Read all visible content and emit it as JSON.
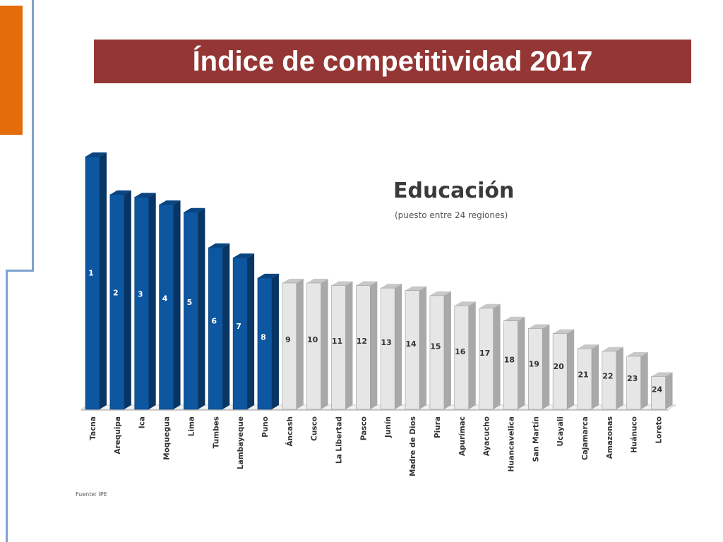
{
  "slide": {
    "title": "Índice de competitividad 2017",
    "colors": {
      "title_bar": "#943634",
      "accent": "#e46c0a",
      "rule": "#7ea1d0"
    }
  },
  "chart_data": {
    "type": "bar",
    "title": "Educación",
    "subtitle": "(puesto entre 24 regiones)",
    "source": "Fuente: IPE",
    "categories": [
      "Tacna",
      "Arequipa",
      "Ica",
      "Moquegua",
      "Lima",
      "Tumbes",
      "Lambayeque",
      "Puno",
      "Áncash",
      "Cusco",
      "La Libertad",
      "Pasco",
      "Junín",
      "Madre de Dios",
      "Piura",
      "Apurímac",
      "Ayacucho",
      "Huancavelica",
      "San Martín",
      "Ucayali",
      "Cajamarca",
      "Amazonas",
      "Huánuco",
      "Loreto"
    ],
    "ranks": [
      1,
      2,
      3,
      4,
      5,
      6,
      7,
      8,
      9,
      10,
      11,
      12,
      13,
      14,
      15,
      16,
      17,
      18,
      19,
      20,
      21,
      22,
      23,
      24
    ],
    "relative_heights": [
      1.0,
      0.85,
      0.84,
      0.81,
      0.78,
      0.64,
      0.6,
      0.52,
      0.5,
      0.5,
      0.49,
      0.49,
      0.48,
      0.47,
      0.45,
      0.41,
      0.4,
      0.35,
      0.32,
      0.3,
      0.24,
      0.23,
      0.21,
      0.13
    ],
    "highlighted_count": 8,
    "colors": {
      "highlight": "#0d56a0",
      "other": "#e6e6e6"
    },
    "ylim": [
      0,
      1
    ],
    "grid": false,
    "legend": "none"
  }
}
